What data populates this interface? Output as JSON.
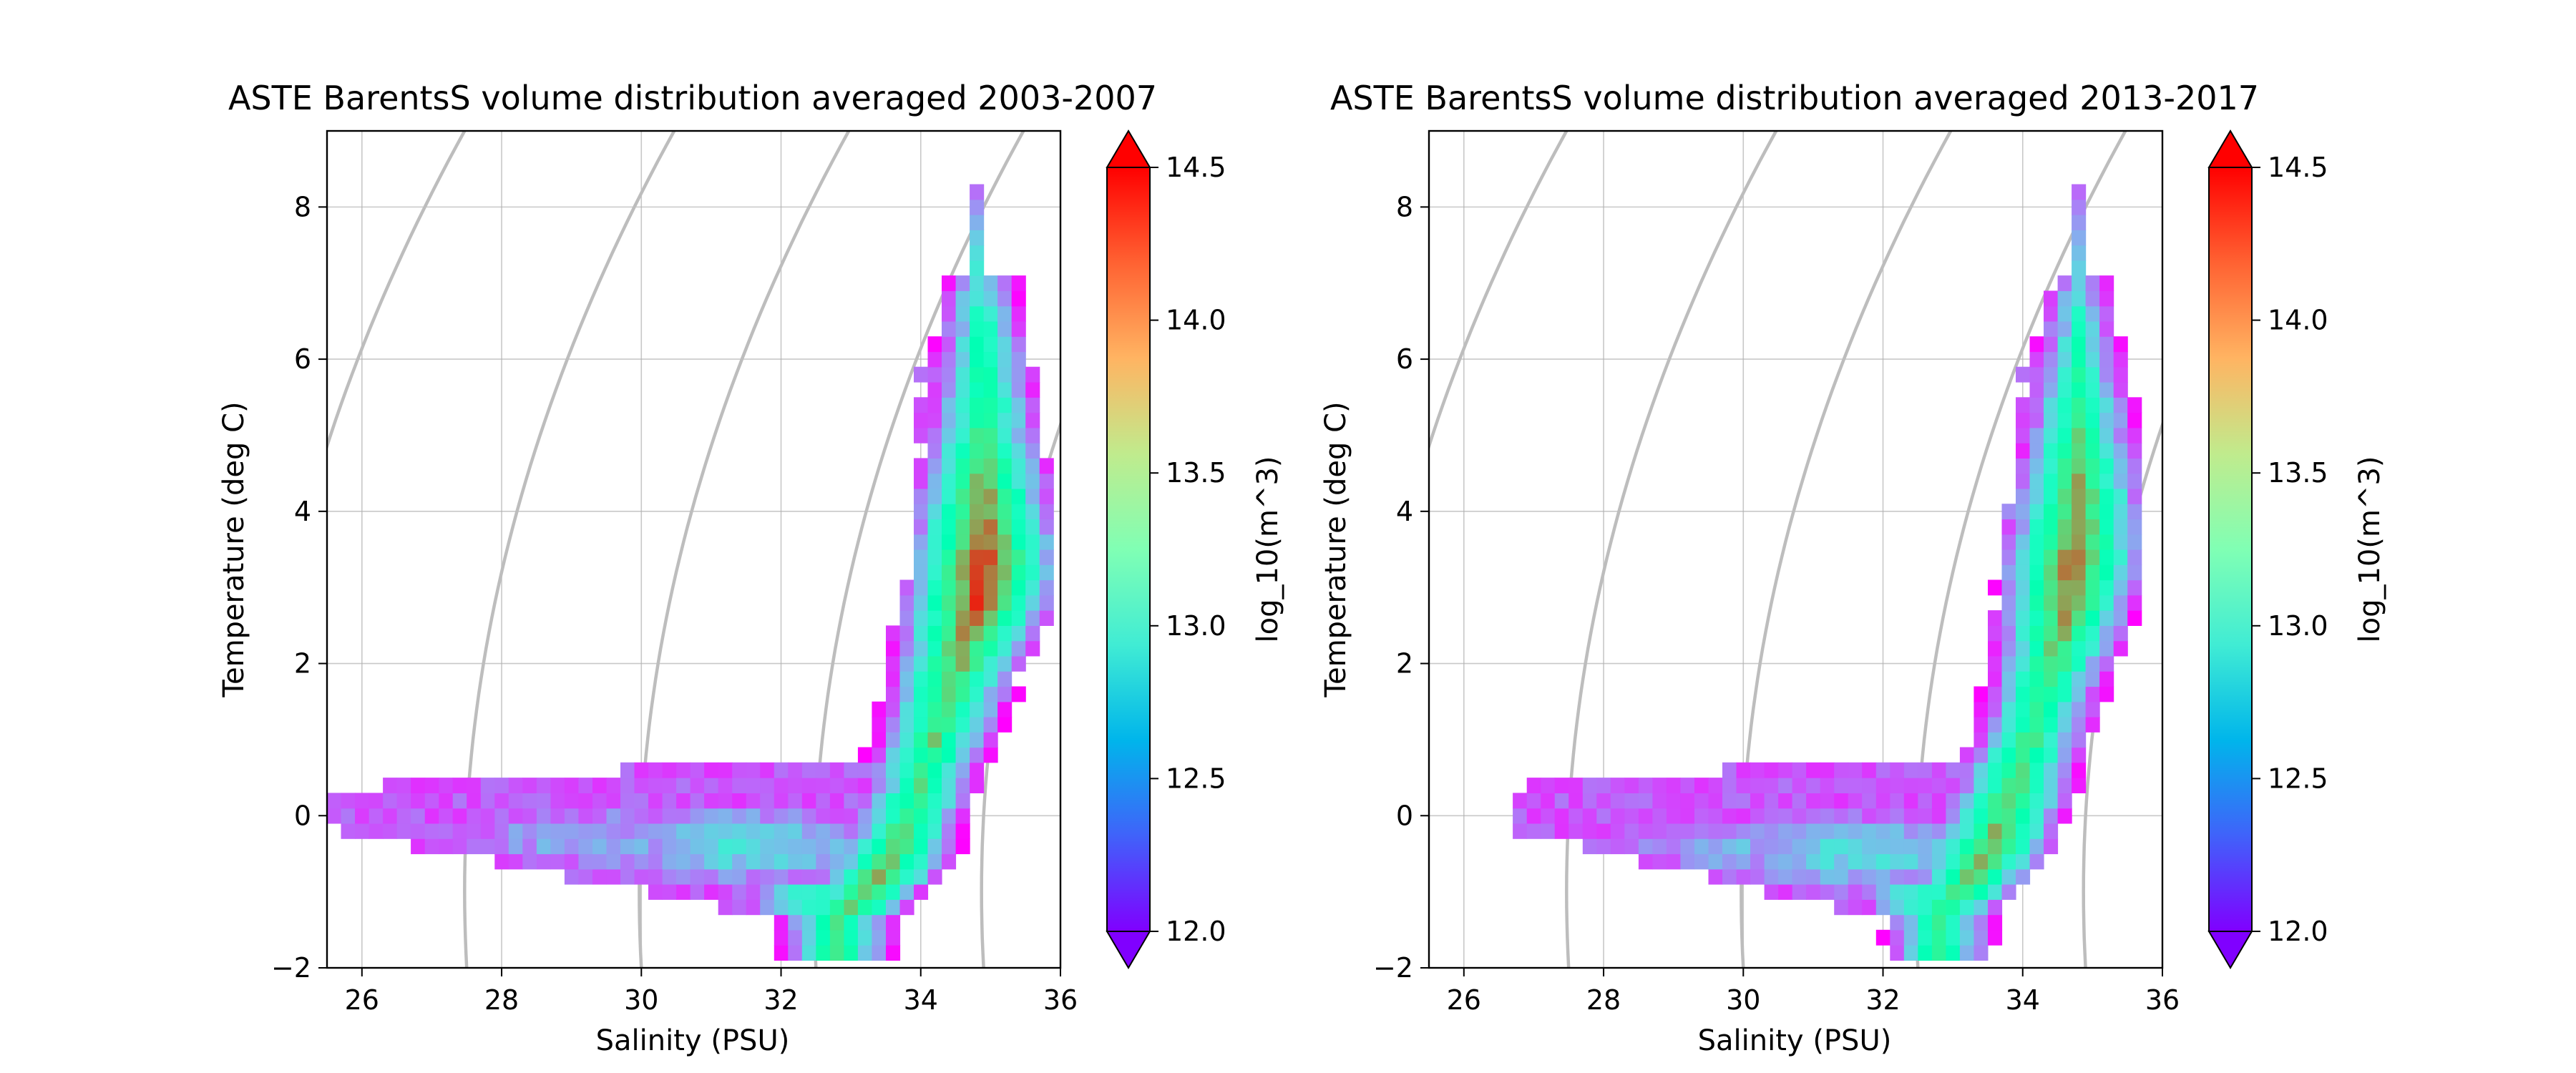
{
  "chart_data": [
    {
      "type": "heatmap",
      "title": "ASTE BarentsS volume distribution averaged 2003-2007",
      "xlabel": "Salinity (PSU)",
      "ylabel": "Temperature (deg C)",
      "xlim": [
        25.5,
        36
      ],
      "ylim": [
        -2,
        9
      ],
      "xticks": [
        "26",
        "28",
        "30",
        "32",
        "34",
        "36"
      ],
      "yticks": [
        "−2",
        "0",
        "2",
        "4",
        "6",
        "8"
      ],
      "grid": true,
      "colorbar": {
        "label": "log_10(m^3)",
        "range": [
          12.0,
          14.5
        ],
        "ticks": [
          "12.0",
          "12.5",
          "13.0",
          "13.5",
          "14.0",
          "14.5"
        ],
        "colormap": "rainbow",
        "extend": "both"
      },
      "bin_size": {
        "salinity": 0.2,
        "temperature": 0.2
      },
      "density_contours_salinity_at_0C": [
        24.5,
        27.5,
        30.0,
        32.5,
        34.9
      ],
      "cells": {
        "core": [
          [
            32.7,
            -1.4,
            13.6
          ],
          [
            32.9,
            -1.3,
            13.8
          ],
          [
            33.1,
            -1.1,
            13.8
          ],
          [
            33.3,
            -0.9,
            13.9
          ],
          [
            33.5,
            -0.6,
            13.8
          ],
          [
            33.7,
            -0.2,
            13.7
          ],
          [
            33.9,
            0.3,
            13.6
          ],
          [
            34.1,
            0.9,
            13.7
          ],
          [
            34.3,
            1.5,
            13.8
          ],
          [
            34.5,
            2.1,
            14.0
          ],
          [
            34.7,
            2.6,
            14.3
          ],
          [
            34.8,
            3.2,
            14.4
          ],
          [
            34.8,
            4.0,
            14.1
          ],
          [
            34.8,
            5.0,
            13.6
          ],
          [
            34.8,
            6.2,
            13.3
          ],
          [
            34.7,
            7.4,
            12.8
          ],
          [
            34.7,
            8.2,
            12.3
          ]
        ],
        "blobs": [
          [
            31.4,
            -0.5,
            2.2,
            0.6,
            12.8
          ],
          [
            32.4,
            -1.2,
            0.8,
            0.35,
            13.0
          ],
          [
            29.2,
            -0.4,
            2.6,
            0.55,
            12.6
          ]
        ],
        "shelf_mask": {
          "s_min": 25.5,
          "s_max": 33.2,
          "t_top": 0.4,
          "t_min": -1.7
        },
        "left_edge_start": 25.5
      }
    },
    {
      "type": "heatmap",
      "title": "ASTE BarentsS volume distribution averaged 2013-2017",
      "xlabel": "Salinity (PSU)",
      "ylabel": "Temperature (deg C)",
      "xlim": [
        25.5,
        36
      ],
      "ylim": [
        -2,
        9
      ],
      "xticks": [
        "26",
        "28",
        "30",
        "32",
        "34",
        "36"
      ],
      "yticks": [
        "−2",
        "0",
        "2",
        "4",
        "6",
        "8"
      ],
      "grid": true,
      "colorbar": {
        "label": "log_10(m^3)",
        "range": [
          12.0,
          14.5
        ],
        "ticks": [
          "12.0",
          "12.5",
          "13.0",
          "13.5",
          "14.0",
          "14.5"
        ],
        "colormap": "rainbow",
        "extend": "both"
      },
      "bin_size": {
        "salinity": 0.2,
        "temperature": 0.2
      },
      "density_contours_salinity_at_0C": [
        24.5,
        27.5,
        30.0,
        32.5,
        34.9
      ],
      "cells": {
        "core": [
          [
            32.7,
            -1.4,
            13.5
          ],
          [
            32.9,
            -1.2,
            13.7
          ],
          [
            33.1,
            -1.0,
            13.8
          ],
          [
            33.3,
            -0.7,
            13.9
          ],
          [
            33.5,
            -0.4,
            13.9
          ],
          [
            33.7,
            0.1,
            13.8
          ],
          [
            33.9,
            0.6,
            13.7
          ],
          [
            34.1,
            1.2,
            13.6
          ],
          [
            34.3,
            1.8,
            13.7
          ],
          [
            34.5,
            2.5,
            14.0
          ],
          [
            34.6,
            3.2,
            14.2
          ],
          [
            34.7,
            4.0,
            14.0
          ],
          [
            34.7,
            5.0,
            13.6
          ],
          [
            34.7,
            6.0,
            13.2
          ],
          [
            34.7,
            7.0,
            12.8
          ],
          [
            34.7,
            8.2,
            12.3
          ]
        ],
        "blobs": [
          [
            31.6,
            -0.6,
            2.2,
            0.6,
            12.8
          ],
          [
            32.6,
            -1.2,
            0.9,
            0.35,
            13.0
          ],
          [
            29.8,
            -0.5,
            2.2,
            0.5,
            12.6
          ]
        ],
        "shelf_mask": {
          "s_min": 26.6,
          "s_max": 33.0,
          "t_top": 0.5,
          "t_min": -1.7
        },
        "left_edge_start": 26.6
      }
    }
  ]
}
